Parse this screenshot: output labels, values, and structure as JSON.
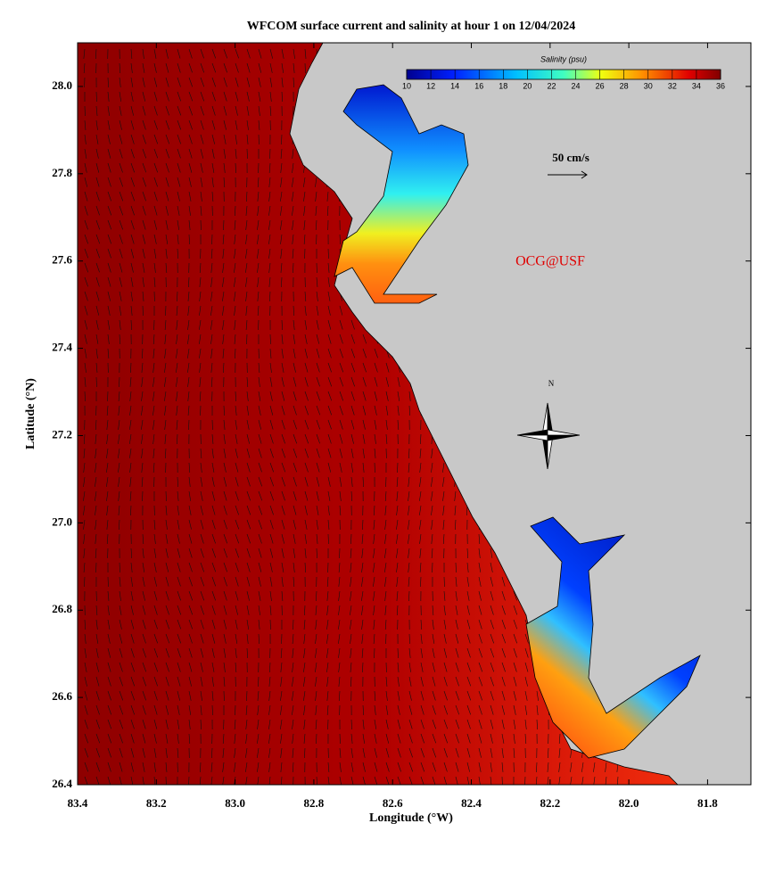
{
  "title": "WFCOM surface current and salinity at hour 1 on 12/04/2024",
  "x_axis": {
    "label": "Longitude (°W)",
    "lim": [
      83.4,
      81.69
    ],
    "ticks": [
      83.4,
      83.2,
      {
        "value": 83,
        "label": "83.0"
      },
      82.8,
      82.6,
      82.4,
      82.2,
      {
        "value": 82,
        "label": "82.0"
      },
      81.8
    ]
  },
  "y_axis": {
    "label": "Latitude (°N)",
    "lim": [
      26.4,
      28.1
    ],
    "ticks": [
      26.4,
      26.6,
      26.8,
      {
        "value": 27,
        "label": "27.0"
      },
      27.2,
      27.4,
      27.6,
      27.8,
      {
        "value": 28,
        "label": "28.0"
      }
    ]
  },
  "colorbar": {
    "label": "Salinity (psu)",
    "lim": [
      10,
      36
    ],
    "ticks": [
      10,
      12,
      14,
      16,
      18,
      20,
      22,
      24,
      26,
      28,
      30,
      32,
      34,
      36
    ]
  },
  "scale_label": "50 cm/s",
  "watermark": "OCG@USF",
  "compass_label": "N"
}
